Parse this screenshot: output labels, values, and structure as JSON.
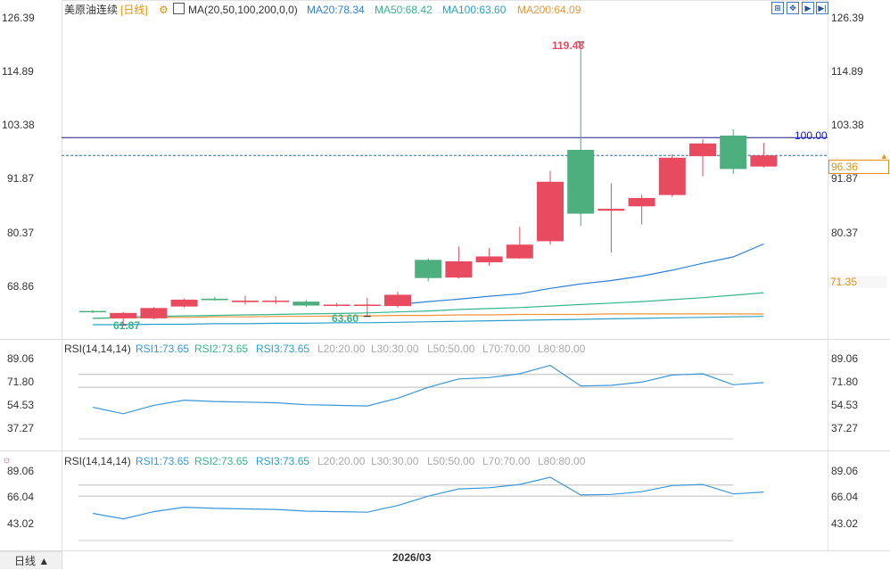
{
  "header": {
    "symbol": "美原油连续",
    "period": "[日线]",
    "ma_params": "MA(20,50,100,200,0,0)",
    "ma20": "MA20:78.34",
    "ma50": "MA50:68.42",
    "ma100": "MA100:63.60",
    "ma200": "MA200:64.09"
  },
  "toolbar": [
    "zoom-icon",
    "move-icon",
    "play-icon",
    "end-icon"
  ],
  "price_axis": {
    "ticks": [
      "126.39",
      "114.89",
      "103.38",
      "91.87",
      "80.37",
      "68.86"
    ],
    "current_price": "96.36",
    "ma_tag": "71.35"
  },
  "annotations": {
    "high": "119.48",
    "low_left": "61.87",
    "low_mid": "63.60",
    "level": "100.00"
  },
  "rsi_panels": [
    {
      "title": "RSI(14,14,14)",
      "rsi1": "RSI1:73.65",
      "rsi2": "RSI2:73.65",
      "rsi3": "RSI3:73.65",
      "l20": "L20:20.00",
      "l30": "L30:30.00",
      "l50": "L50:50.00",
      "l70": "L70:70.00",
      "l80": "L80:80.00",
      "ticks": [
        "89.06",
        "71.80",
        "54.53",
        "37.27"
      ]
    },
    {
      "title": "RSI(14,14,14)",
      "rsi1": "RSI1:73.65",
      "rsi2": "RSI2:73.65",
      "rsi3": "RSI3:73.65",
      "l20": "L20:20.00",
      "l30": "L30:30.00",
      "l50": "L50:50.00",
      "l70": "L70:70.00",
      "l80": "L80:80.00",
      "ticks": [
        "89.06",
        "66.04",
        "43.02"
      ]
    }
  ],
  "x_axis_label": "2026/03",
  "bottom_tab": "日线 ▲",
  "colors": {
    "up": "#e84a5f",
    "down": "#4caf7d",
    "ma20": "#2f7ed8",
    "ma50": "#35b58a",
    "ma100": "#2aa0c8",
    "ma200": "#f0943a",
    "rsi": "#3a96d8",
    "level": "#1a1a8c"
  },
  "chart_data": {
    "type": "candlestick",
    "candles": [
      {
        "o": 64.7,
        "h": 64.8,
        "l": 64.3,
        "c": 64.6
      },
      {
        "o": 63.2,
        "h": 64.5,
        "l": 61.87,
        "c": 64.3
      },
      {
        "o": 63.2,
        "h": 65.5,
        "l": 63.0,
        "c": 65.3
      },
      {
        "o": 65.6,
        "h": 67.2,
        "l": 65.4,
        "c": 67.0
      },
      {
        "o": 67.2,
        "h": 67.6,
        "l": 66.8,
        "c": 66.9
      },
      {
        "o": 66.5,
        "h": 67.8,
        "l": 66.0,
        "c": 66.8
      },
      {
        "o": 66.6,
        "h": 67.7,
        "l": 66.1,
        "c": 66.8
      },
      {
        "o": 66.6,
        "h": 66.9,
        "l": 65.5,
        "c": 65.8
      },
      {
        "o": 65.9,
        "h": 66.3,
        "l": 65.6,
        "c": 66.0
      },
      {
        "o": 65.9,
        "h": 67.4,
        "l": 63.6,
        "c": 66.0
      },
      {
        "o": 65.7,
        "h": 68.6,
        "l": 65.4,
        "c": 68.0
      },
      {
        "o": 75.1,
        "h": 75.4,
        "l": 70.7,
        "c": 71.4
      },
      {
        "o": 71.5,
        "h": 77.8,
        "l": 71.3,
        "c": 74.8
      },
      {
        "o": 74.6,
        "h": 77.5,
        "l": 73.9,
        "c": 75.8
      },
      {
        "o": 75.4,
        "h": 81.8,
        "l": 75.3,
        "c": 78.2
      },
      {
        "o": 78.9,
        "h": 93.2,
        "l": 78.2,
        "c": 91.0
      },
      {
        "o": 97.5,
        "h": 119.48,
        "l": 82.0,
        "c": 84.5
      },
      {
        "o": 85.1,
        "h": 90.7,
        "l": 76.6,
        "c": 85.5
      },
      {
        "o": 86.0,
        "h": 88.3,
        "l": 82.3,
        "c": 87.7
      },
      {
        "o": 88.3,
        "h": 96.6,
        "l": 87.9,
        "c": 95.9
      },
      {
        "o": 96.2,
        "h": 99.7,
        "l": 92.1,
        "c": 98.8
      },
      {
        "o": 100.4,
        "h": 101.7,
        "l": 92.6,
        "c": 93.6
      },
      {
        "o": 94.1,
        "h": 98.9,
        "l": 93.9,
        "c": 96.36
      }
    ],
    "ma20": [
      null,
      null,
      null,
      null,
      null,
      null,
      null,
      null,
      null,
      null,
      66.0,
      66.6,
      67.1,
      67.7,
      68.2,
      69.3,
      70.2,
      70.9,
      71.8,
      73.0,
      74.4,
      75.7,
      78.34
    ],
    "ma50": [
      63.2,
      63.4,
      63.6,
      63.7,
      63.8,
      63.9,
      64.0,
      64.1,
      64.2,
      64.3,
      64.5,
      64.7,
      65.0,
      65.2,
      65.4,
      65.7,
      66.0,
      66.3,
      66.6,
      67.0,
      67.4,
      67.9,
      68.42
    ],
    "ma100": [
      61.9,
      61.9,
      62.0,
      62.0,
      62.1,
      62.1,
      62.2,
      62.2,
      62.3,
      62.3,
      62.4,
      62.5,
      62.6,
      62.7,
      62.8,
      62.9,
      63.0,
      63.1,
      63.2,
      63.3,
      63.4,
      63.5,
      63.6
    ],
    "ma200": [
      63.2,
      63.3,
      63.4,
      63.4,
      63.5,
      63.5,
      63.6,
      63.6,
      63.7,
      63.7,
      63.8,
      63.8,
      63.9,
      63.9,
      64.0,
      64.0,
      64.0,
      64.1,
      64.1,
      64.1,
      64.1,
      64.1,
      64.09
    ],
    "rsi1": [
      54.5,
      49.5,
      56.0,
      60.0,
      59.0,
      58.5,
      58.0,
      56.5,
      56.0,
      55.5,
      61.5,
      70.0,
      76.5,
      77.5,
      80.5,
      87.0,
      71.0,
      71.5,
      74.0,
      79.5,
      80.5,
      72.0,
      73.65
    ],
    "ylim_price": [
      59.0,
      128.0
    ],
    "ylim_rsi": [
      30.0,
      95.0
    ],
    "level_line": 100.0,
    "current_price": 96.36
  }
}
